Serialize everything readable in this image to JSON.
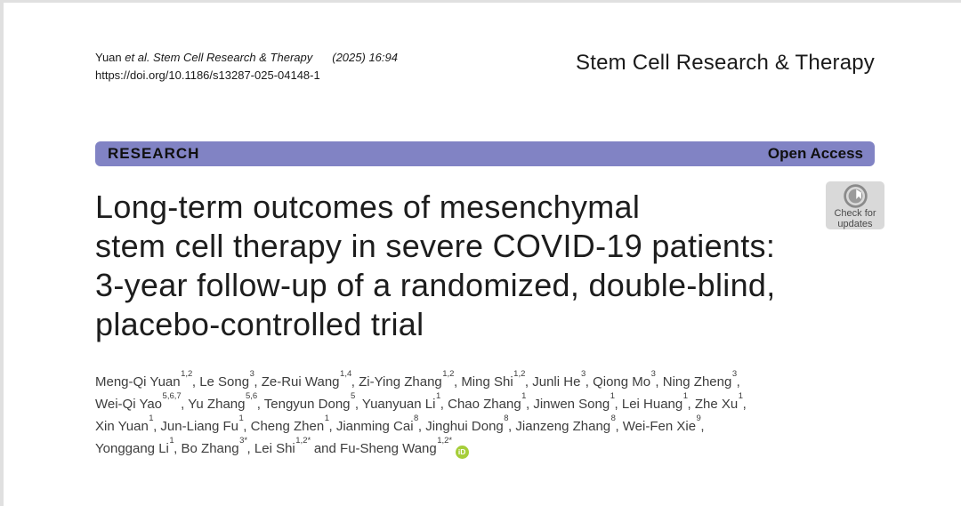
{
  "header": {
    "citation_prefix": "Yuan ",
    "citation_italic": "et al. Stem Cell Research & Therapy",
    "citation_ref": "(2025) 16:94",
    "doi": "https://doi.org/10.1186/s13287-025-04148-1",
    "journal_name": "Stem Cell Research & Therapy"
  },
  "banner": {
    "left_label": "RESEARCH",
    "right_label": "Open Access",
    "color": "#8183c4"
  },
  "check_badge": {
    "line1": "Check for",
    "line2": "updates"
  },
  "title_lines": [
    "Long-term outcomes of mesenchymal",
    "stem cell therapy in severe COVID-19 patients:",
    "3-year follow-up of a randomized, double-blind,",
    "placebo-controlled trial"
  ],
  "author_lines": [
    [
      {
        "name": "Meng-Qi Yuan",
        "sup": "1,2",
        "sep": ", "
      },
      {
        "name": "Le Song",
        "sup": "3",
        "sep": ", "
      },
      {
        "name": "Ze-Rui Wang",
        "sup": "1,4",
        "sep": ", "
      },
      {
        "name": "Zi-Ying Zhang",
        "sup": "1,2",
        "sep": ", "
      },
      {
        "name": "Ming Shi",
        "sup": "1,2",
        "sep": ", "
      },
      {
        "name": "Junli He",
        "sup": "3",
        "sep": ", "
      },
      {
        "name": "Qiong Mo",
        "sup": "3",
        "sep": ", "
      },
      {
        "name": "Ning Zheng",
        "sup": "3",
        "sep": ","
      }
    ],
    [
      {
        "name": "Wei-Qi Yao",
        "sup": "5,6,7",
        "sep": ", "
      },
      {
        "name": "Yu Zhang",
        "sup": "5,6",
        "sep": ", "
      },
      {
        "name": "Tengyun Dong",
        "sup": "5",
        "sep": ", "
      },
      {
        "name": "Yuanyuan Li",
        "sup": "1",
        "sep": ", "
      },
      {
        "name": "Chao Zhang",
        "sup": "1",
        "sep": ", "
      },
      {
        "name": "Jinwen Song",
        "sup": "1",
        "sep": ", "
      },
      {
        "name": "Lei Huang",
        "sup": "1",
        "sep": ", "
      },
      {
        "name": "Zhe Xu",
        "sup": "1",
        "sep": ","
      }
    ],
    [
      {
        "name": "Xin Yuan",
        "sup": "1",
        "sep": ", "
      },
      {
        "name": "Jun-Liang Fu",
        "sup": "1",
        "sep": ", "
      },
      {
        "name": "Cheng Zhen",
        "sup": "1",
        "sep": ", "
      },
      {
        "name": "Jianming Cai",
        "sup": "8",
        "sep": ", "
      },
      {
        "name": "Jinghui Dong",
        "sup": "8",
        "sep": ", "
      },
      {
        "name": "Jianzeng Zhang",
        "sup": "8",
        "sep": ", "
      },
      {
        "name": "Wei-Fen Xie",
        "sup": "9",
        "sep": ","
      }
    ],
    [
      {
        "name": "Yonggang Li",
        "sup": "1",
        "sep": ", "
      },
      {
        "name": "Bo Zhang",
        "sup": "3*",
        "sep": ", "
      },
      {
        "name": "Lei Shi",
        "sup": "1,2*",
        "sep": " and "
      },
      {
        "name": "Fu-Sheng Wang",
        "sup": "1,2*",
        "sep": "",
        "orcid": true
      }
    ]
  ],
  "colors": {
    "banner_purple": "#8183c4",
    "orcid_green": "#a6ce39",
    "badge_gray": "#d9d9d9"
  },
  "orcid_label": "iD"
}
